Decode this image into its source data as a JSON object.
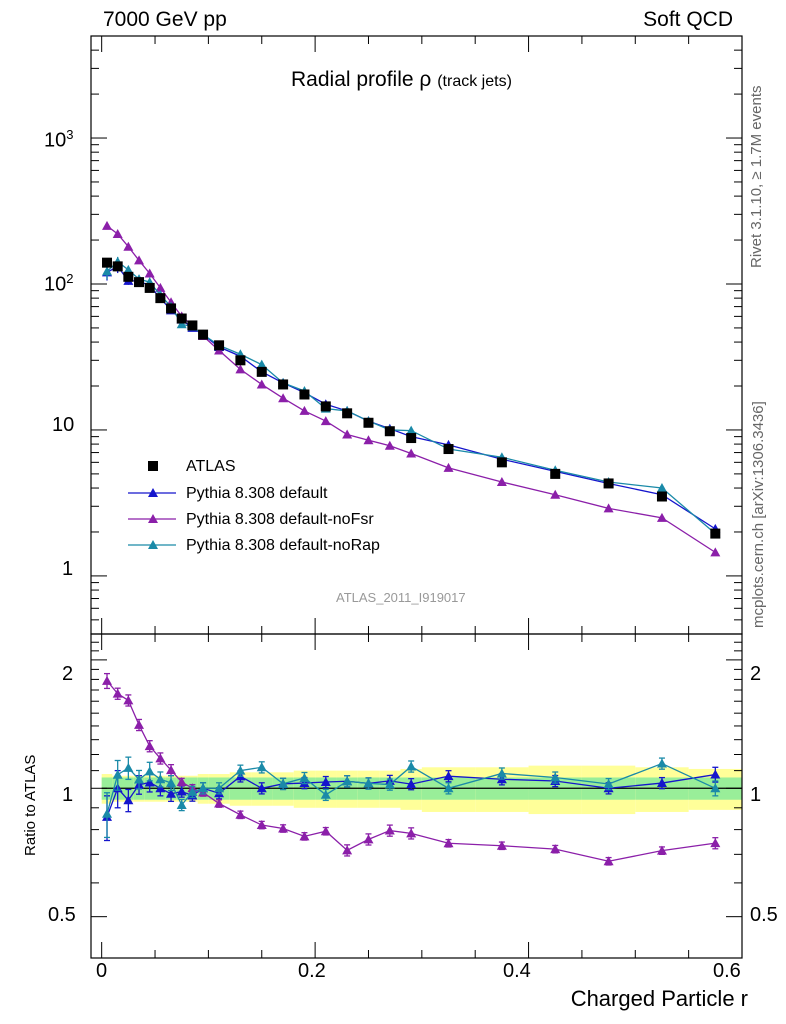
{
  "header": {
    "left": "7000 GeV pp",
    "right": "Soft QCD"
  },
  "side": {
    "rivet": "Rivet 3.1.10, ≥ 1.7M events",
    "mcplots": "mcplots.cern.ch [arXiv:1306.3436]"
  },
  "analysis_id": "ATLAS_2011_I919017",
  "chart_data": {
    "type": "line",
    "title": "Radial profile",
    "title_symbol": "ρ",
    "title_suffix": "(track jets)",
    "xlabel": "Charged Particle r",
    "ylabel_ratio": "Ratio to ATLAS",
    "xlim": [
      -0.01,
      0.6
    ],
    "ylim_main": [
      0.4,
      5000
    ],
    "ylim_ratio": [
      0.4,
      2.3
    ],
    "yscale_main": "log",
    "yscale_ratio": "log",
    "x_ticks": [
      "0",
      "0.2",
      "0.4",
      "0.6"
    ],
    "y_ticks_main": [
      "1",
      "10",
      "10^2",
      "10^3"
    ],
    "y_ticks_ratio": [
      "0.5",
      "1",
      "2"
    ],
    "legend_position": "lower-left",
    "x": [
      0.005,
      0.015,
      0.025,
      0.035,
      0.045,
      0.055,
      0.065,
      0.075,
      0.085,
      0.095,
      0.11,
      0.13,
      0.15,
      0.17,
      0.19,
      0.21,
      0.23,
      0.25,
      0.27,
      0.29,
      0.325,
      0.375,
      0.425,
      0.475,
      0.525,
      0.575
    ],
    "x_edges": [
      0,
      0.01,
      0.02,
      0.03,
      0.04,
      0.05,
      0.06,
      0.07,
      0.08,
      0.09,
      0.1,
      0.12,
      0.14,
      0.16,
      0.18,
      0.2,
      0.22,
      0.24,
      0.26,
      0.28,
      0.3,
      0.35,
      0.4,
      0.45,
      0.5,
      0.55,
      0.6
    ],
    "ratio_band_inner": [
      0.06,
      0.06,
      0.06,
      0.06,
      0.06,
      0.06,
      0.06,
      0.06,
      0.06,
      0.06,
      0.06,
      0.06,
      0.06,
      0.06,
      0.06,
      0.06,
      0.06,
      0.06,
      0.06,
      0.06,
      0.06,
      0.06,
      0.06,
      0.06,
      0.06,
      0.06
    ],
    "ratio_band_outer": [
      0.08,
      0.07,
      0.07,
      0.07,
      0.07,
      0.07,
      0.07,
      0.07,
      0.07,
      0.08,
      0.08,
      0.09,
      0.09,
      0.09,
      0.1,
      0.1,
      0.1,
      0.1,
      0.1,
      0.11,
      0.12,
      0.12,
      0.13,
      0.13,
      0.12,
      0.11
    ],
    "series": [
      {
        "name": "ATLAS",
        "color": "#000000",
        "marker": "square",
        "values": [
          140,
          132,
          112,
          103,
          94,
          80,
          68,
          58,
          52,
          45,
          38,
          30,
          25,
          20.5,
          17.5,
          14.5,
          13,
          11.2,
          9.8,
          8.8,
          7.4,
          6.0,
          5.0,
          4.3,
          3.5,
          1.95
        ]
      },
      {
        "name": "Pythia 8.308 default",
        "color": "#1515cc",
        "marker": "triangle",
        "values": [
          120,
          132,
          105,
          105,
          97,
          80,
          66,
          57,
          50,
          45,
          37,
          32,
          25,
          21,
          18,
          15,
          13.5,
          11.5,
          10.2,
          9.0,
          7.9,
          6.3,
          5.2,
          4.3,
          3.6,
          2.1
        ],
        "errors": [
          0.12,
          0.1,
          0.06,
          0.05,
          0.05,
          0.04,
          0.04,
          0.03,
          0.03,
          0.03,
          0.03,
          0.03,
          0.03,
          0.03,
          0.03,
          0.03,
          0.03,
          0.03,
          0.03,
          0.03,
          0.03,
          0.03,
          0.03,
          0.03,
          0.03,
          0.04
        ]
      },
      {
        "name": "Pythia 8.308 default-noFsr",
        "color": "#8b1fa9",
        "marker": "triangle",
        "values": [
          250,
          220,
          180,
          145,
          118,
          94,
          75,
          60,
          52,
          44,
          35,
          26,
          20.5,
          16.5,
          13.5,
          11.5,
          9.3,
          8.5,
          7.8,
          6.9,
          5.5,
          4.4,
          3.6,
          2.9,
          2.5,
          1.45
        ],
        "errors": [
          0.04,
          0.03,
          0.03,
          0.03,
          0.03,
          0.03,
          0.03,
          0.02,
          0.02,
          0.02,
          0.02,
          0.02,
          0.02,
          0.02,
          0.02,
          0.02,
          0.03,
          0.03,
          0.03,
          0.03,
          0.02,
          0.02,
          0.02,
          0.02,
          0.02,
          0.03
        ]
      },
      {
        "name": "Pythia 8.308 default-noRap",
        "color": "#1a8aa8",
        "marker": "triangle",
        "values": [
          122,
          142,
          125,
          108,
          103,
          84,
          70,
          53,
          51,
          45,
          38,
          33,
          28,
          21,
          18.5,
          14,
          13.5,
          11.5,
          10,
          9.9,
          7.4,
          6.5,
          5.3,
          4.4,
          4.0,
          1.95
        ],
        "errors": [
          0.12,
          0.08,
          0.06,
          0.05,
          0.05,
          0.04,
          0.04,
          0.03,
          0.03,
          0.03,
          0.03,
          0.03,
          0.03,
          0.03,
          0.03,
          0.03,
          0.03,
          0.03,
          0.03,
          0.03,
          0.03,
          0.03,
          0.03,
          0.03,
          0.03,
          0.04
        ]
      }
    ]
  }
}
